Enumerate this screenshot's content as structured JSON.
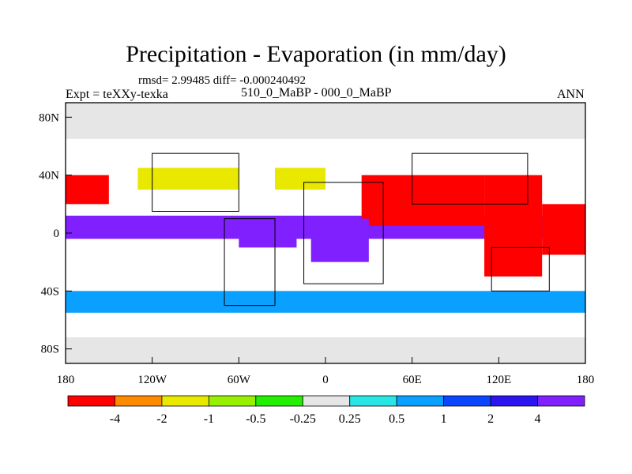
{
  "title": "Precipitation - Evaporation (in mm/day)",
  "stats": "rmsd= 2.99485 diff= -0.000240492",
  "left_label": "Expt = teXXy-texka",
  "center_label": "510_0_MaBP - 000_0_MaBP",
  "right_label": "ANN",
  "axes": {
    "x_ticks": [
      "180",
      "120W",
      "60W",
      "0",
      "60E",
      "120E",
      "180"
    ],
    "y_ticks": [
      "80N",
      "40N",
      "0",
      "40S",
      "80S"
    ]
  },
  "colorbar": {
    "labels": [
      "-4",
      "-2",
      "-1",
      "-0.5",
      "-0.25",
      "0.25",
      "0.5",
      "1",
      "2",
      "4"
    ],
    "colors": [
      "#ff0000",
      "#ff8a00",
      "#e8e800",
      "#96f000",
      "#22f000",
      "#e6e6e6",
      "#28e6e6",
      "#0aa0ff",
      "#0a46ff",
      "#2a14f0",
      "#8020ff"
    ]
  },
  "chart_data": {
    "type": "heatmap",
    "title": "Precipitation - Evaporation (in mm/day)",
    "xlabel": "",
    "ylabel": "",
    "xlim": [
      -180,
      180
    ],
    "ylim": [
      -90,
      90
    ],
    "levels": [
      -4,
      -2,
      -1,
      -0.5,
      -0.25,
      0.25,
      0.5,
      1,
      2,
      4
    ],
    "x_ticks": [
      "180",
      "120W",
      "60W",
      "0",
      "60E",
      "120E",
      "180"
    ],
    "y_ticks": [
      "80N",
      "40N",
      "0",
      "40S",
      "80S"
    ],
    "regions": [
      {
        "lon": [
          -180,
          180
        ],
        "lat": [
          65,
          90
        ],
        "level": 5
      },
      {
        "lon": [
          -180,
          180
        ],
        "lat": [
          -90,
          -72
        ],
        "level": 5
      },
      {
        "lon": [
          -180,
          180
        ],
        "lat": [
          -4,
          12
        ],
        "level": 10
      },
      {
        "lon": [
          25,
          110
        ],
        "lat": [
          5,
          40
        ],
        "level": 0
      },
      {
        "lon": [
          110,
          150
        ],
        "lat": [
          -30,
          40
        ],
        "level": 0
      },
      {
        "lon": [
          150,
          180
        ],
        "lat": [
          -15,
          20
        ],
        "level": 0
      },
      {
        "lon": [
          -180,
          -150
        ],
        "lat": [
          20,
          40
        ],
        "level": 0
      },
      {
        "lon": [
          -10,
          30
        ],
        "lat": [
          -20,
          10
        ],
        "level": 10
      },
      {
        "lon": [
          -60,
          -20
        ],
        "lat": [
          -10,
          10
        ],
        "level": 10
      },
      {
        "lon": [
          -180,
          180
        ],
        "lat": [
          -55,
          -40
        ],
        "level": 7
      },
      {
        "lon": [
          -130,
          -60
        ],
        "lat": [
          30,
          45
        ],
        "level": 2
      },
      {
        "lon": [
          -35,
          0
        ],
        "lat": [
          30,
          45
        ],
        "level": 2
      }
    ]
  }
}
